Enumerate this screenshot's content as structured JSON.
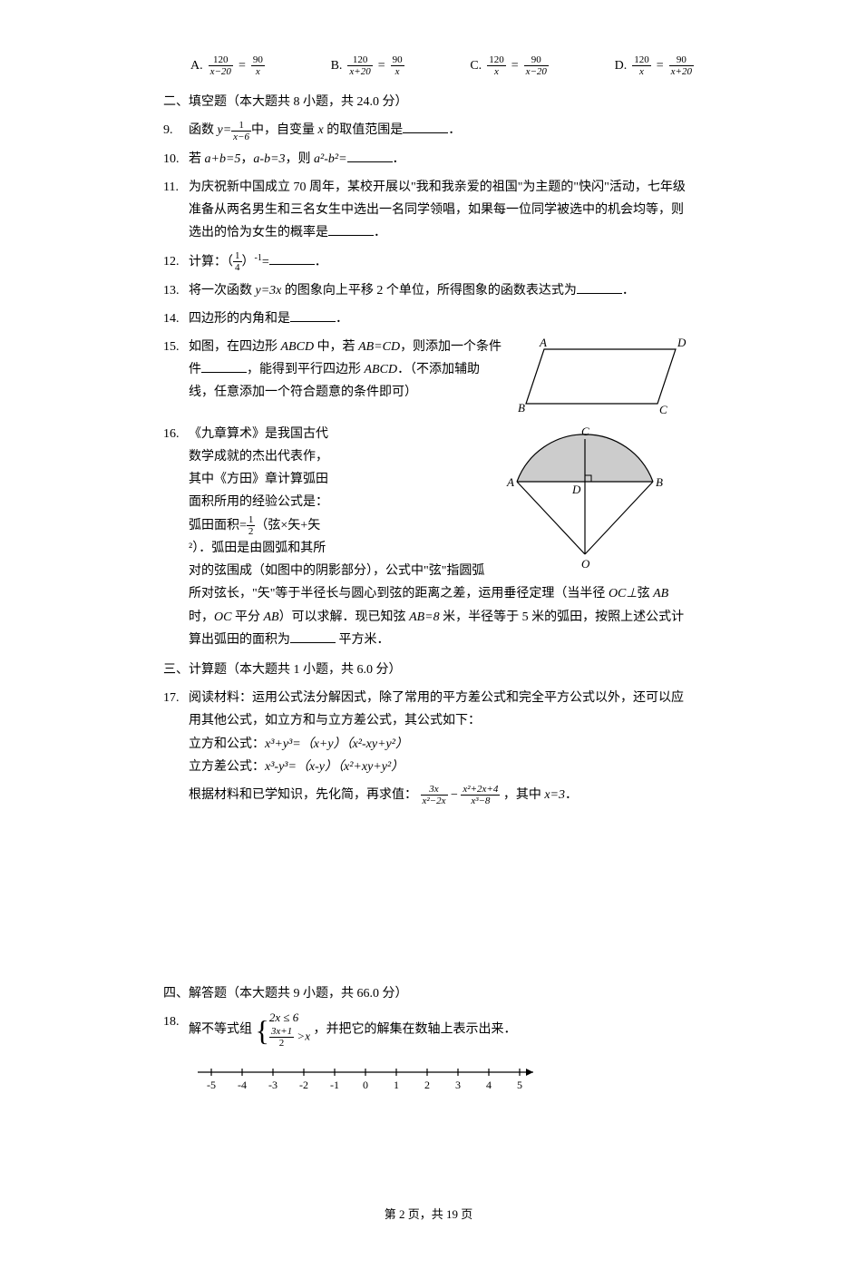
{
  "q8_options": {
    "A": {
      "label": "A.",
      "n1": "120",
      "d1": "x−20",
      "n2": "90",
      "d2": "x"
    },
    "B": {
      "label": "B.",
      "n1": "120",
      "d1": "x+20",
      "n2": "90",
      "d2": "x"
    },
    "C": {
      "label": "C.",
      "n1": "120",
      "d1": "x",
      "n2": "90",
      "d2": "x−20"
    },
    "D": {
      "label": "D.",
      "n1": "120",
      "d1": "x",
      "n2": "90",
      "d2": "x+20"
    }
  },
  "section2": "二、填空题（本大题共 8 小题，共 24.0 分）",
  "q9": {
    "num": "9.",
    "pre": "函数 ",
    "y_eq": "y=",
    "num1": "1",
    "den1": "x−6",
    "mid": "中，自变量 ",
    "x": "x",
    "post": " 的取值范围是",
    "end": "．"
  },
  "q10": {
    "num": "10.",
    "pre": "若 ",
    "ab1": "a+b=5",
    "comma1": "，",
    "ab2": "a-b=3",
    "comma2": "，则 ",
    "expr": "a²-b²=",
    "end": "．"
  },
  "q11": {
    "num": "11.",
    "text": "为庆祝新中国成立 70 周年，某校开展以\"我和我亲爱的祖国\"为主题的\"快闪\"活动，七年级准备从两名男生和三名女生中选出一名同学领唱，如果每一位同学被选中的机会均等，则选出的恰为女生的概率是",
    "end": "．"
  },
  "q12": {
    "num": "12.",
    "pre": "计算：（",
    "n": "1",
    "d": "4",
    "post": "）",
    "exp": "-1",
    "eq": "=",
    "end": "．"
  },
  "q13": {
    "num": "13.",
    "pre": "将一次函数 ",
    "y": "y=3x",
    "post": " 的图象向上平移 2 个单位，所得图象的函数表达式为",
    "end": "．"
  },
  "q14": {
    "num": "14.",
    "text": "四边形的内角和是",
    "end": "．"
  },
  "q15": {
    "num": "15.",
    "pre": "如图，在四边形 ",
    "abcd": "ABCD",
    "mid1": " 中，若 ",
    "abcd2": "AB=CD",
    "mid2": "，则添加一个条件",
    "mid3": "，能得到平行四边形 ",
    "abcd3": "ABCD",
    "post": "．（不添加辅助线，任意添加一个符合题意的条件即可）"
  },
  "q16": {
    "num": "16.",
    "l1": "《九章算术》是我国古代",
    "l2": "数学成就的杰出代表作，",
    "l3": "其中《方田》章计算弧田",
    "l4": "面积所用的经验公式是：",
    "l5a": "弧田面积=",
    "frac_n": "1",
    "frac_d": "2",
    "l5b": "（弦×矢+矢",
    "l6": "²）．弧田是由圆弧和其所",
    "l7": "对的弦围成（如图中的阴影部分），公式中\"弦\"指圆弧所对弦长，\"矢\"等于半径长与圆心到弦的距离之差，运用垂径定理（当半径 ",
    "oc": "OC⊥",
    "xian": "弦 ",
    "ab": "AB",
    "shi": " 时，",
    "oc2": "OC",
    "pf": " 平分 ",
    "ab2": "AB",
    "close": "）可以求解．现已知弦 ",
    "ab3": "AB=8",
    "mi": " 米，半径等于 5 米的弧田，按照上述公式计算出弧田的面积为",
    "end": " 平方米．"
  },
  "section3": "三、计算题（本大题共 1 小题，共 6.0 分）",
  "q17": {
    "num": "17.",
    "l1": "阅读材料：运用公式法分解因式，除了常用的平方差公式和完全平方公式以外，还可以应用其他公式，如立方和与立方差公式，其公式如下：",
    "l2a": "立方和公式：",
    "l2b": "x³+y³=（x+y）（x²-xy+y²）",
    "l3a": "立方差公式：",
    "l3b": "x³-y³=（x-y）（x²+xy+y²）",
    "l4a": "根据材料和已学知识，先化简，再求值：",
    "f1n": "3x",
    "f1d": "x²−2x",
    "minus": "−",
    "f2n": "x²+2x+4",
    "f2d": "x³−8",
    "l4b": "，其中 ",
    "x3": "x=3",
    "end": "．"
  },
  "section4": "四、解答题（本大题共 9 小题，共 66.0 分）",
  "q18": {
    "num": "18.",
    "pre": "解不等式组",
    "line1": "2x ≤ 6",
    "line2n": "3x+1",
    "line2d": "2",
    "line2post": " >x",
    "post": "，并把它的解集在数轴上表示出来．"
  },
  "numberline": {
    "ticks": [
      "-5",
      "-4",
      "-3",
      "-2",
      "-1",
      "0",
      "1",
      "2",
      "3",
      "4",
      "5"
    ]
  },
  "parallelogram_labels": {
    "A": "A",
    "B": "B",
    "C": "C",
    "D": "D"
  },
  "arc_labels": {
    "A": "A",
    "B": "B",
    "C": "C",
    "D": "D",
    "O": "O"
  },
  "footer": "第 2 页，共 19 页"
}
